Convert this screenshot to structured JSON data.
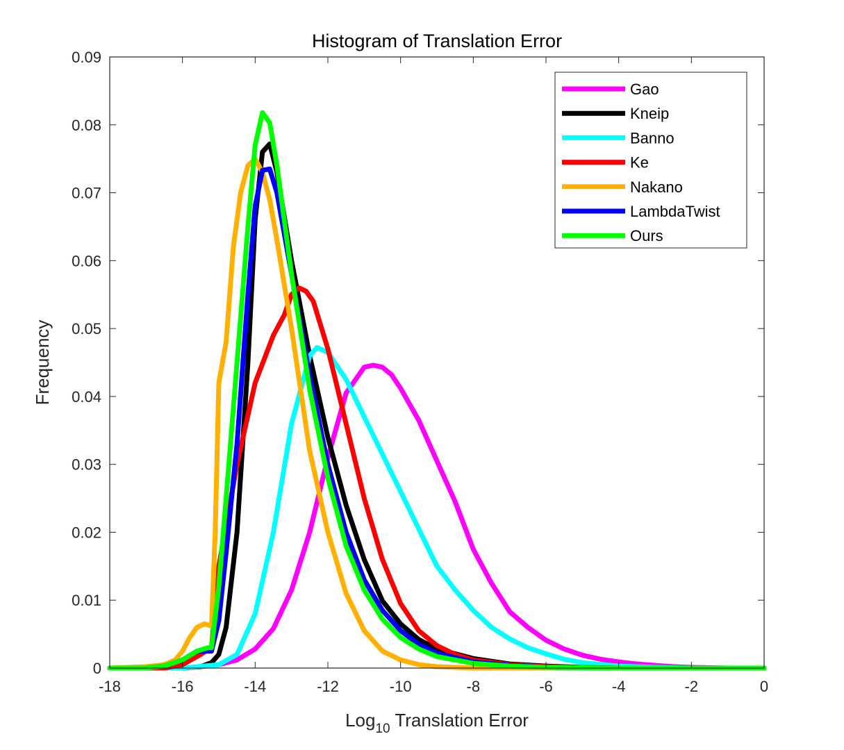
{
  "chart_data": {
    "type": "line",
    "title": "Histogram of Translation Error",
    "xlabel": {
      "prefix": "Log",
      "subscript": "10",
      "suffix": " Translation Error"
    },
    "ylabel": "Frequency",
    "xlim": [
      -18,
      0
    ],
    "ylim": [
      0,
      0.09
    ],
    "xticks": [
      -18,
      -16,
      -14,
      -12,
      -10,
      -8,
      -6,
      -4,
      -2,
      0
    ],
    "xtick_labels": [
      "-18",
      "-16",
      "-14",
      "-12",
      "-10",
      "-8",
      "-6",
      "-4",
      "-2",
      "0"
    ],
    "yticks": [
      0,
      0.01,
      0.02,
      0.03,
      0.04,
      0.05,
      0.06,
      0.07,
      0.08,
      0.09
    ],
    "ytick_labels": [
      "0",
      "0.01",
      "0.02",
      "0.03",
      "0.04",
      "0.05",
      "0.06",
      "0.07",
      "0.08",
      "0.09"
    ],
    "grid": false,
    "legend_position": "top-right",
    "series": [
      {
        "name": "Gao",
        "color": "#ff00ff",
        "x": [
          -18,
          -16,
          -15.5,
          -15,
          -14.5,
          -14,
          -13.5,
          -13,
          -12.5,
          -12,
          -11.5,
          -11,
          -10.75,
          -10.5,
          -10.25,
          -10,
          -9.5,
          -9,
          -8.5,
          -8,
          -7.5,
          -7,
          -6.5,
          -6,
          -5.5,
          -5,
          -4.5,
          -4,
          -3.5,
          -3,
          -2.5,
          -2,
          -1,
          0
        ],
        "y": [
          0,
          0,
          0.0002,
          0.0005,
          0.0012,
          0.0028,
          0.0058,
          0.0115,
          0.02,
          0.031,
          0.0405,
          0.0443,
          0.0446,
          0.0443,
          0.0432,
          0.0412,
          0.0365,
          0.0305,
          0.0245,
          0.0175,
          0.0125,
          0.0083,
          0.006,
          0.0041,
          0.0028,
          0.0019,
          0.0013,
          0.0009,
          0.0006,
          0.0004,
          0.0002,
          0.0001,
          0,
          0
        ]
      },
      {
        "name": "Kneip",
        "color": "#000000",
        "x": [
          -18,
          -17,
          -16,
          -15.5,
          -15.2,
          -15,
          -14.8,
          -14.5,
          -14.2,
          -14,
          -13.8,
          -13.6,
          -13.4,
          -13,
          -12.5,
          -12,
          -11.5,
          -11,
          -10.5,
          -10,
          -9.5,
          -9,
          -8,
          -7,
          -6,
          -5,
          -4,
          -2,
          0
        ],
        "y": [
          0,
          0,
          0,
          0.0002,
          0.0008,
          0.002,
          0.006,
          0.02,
          0.045,
          0.066,
          0.076,
          0.0772,
          0.073,
          0.06,
          0.046,
          0.034,
          0.024,
          0.016,
          0.0099,
          0.0065,
          0.0042,
          0.0028,
          0.0014,
          0.0006,
          0.0003,
          0.0001,
          0,
          0,
          0
        ]
      },
      {
        "name": "Banno",
        "color": "#00ffff",
        "x": [
          -18,
          -16,
          -15,
          -14.5,
          -14,
          -13.5,
          -13,
          -12.5,
          -12.3,
          -12,
          -11.5,
          -11,
          -10.5,
          -10,
          -9.5,
          -9,
          -8.5,
          -8,
          -7.5,
          -7,
          -6.5,
          -6,
          -5.5,
          -5,
          -4,
          -3,
          -2,
          0
        ],
        "y": [
          0,
          0,
          0.0005,
          0.002,
          0.008,
          0.02,
          0.036,
          0.046,
          0.0472,
          0.0465,
          0.0425,
          0.037,
          0.0315,
          0.026,
          0.0205,
          0.015,
          0.0115,
          0.0085,
          0.006,
          0.0043,
          0.003,
          0.0021,
          0.0013,
          0.0008,
          0.0003,
          0.0001,
          0,
          0
        ]
      },
      {
        "name": "Ke",
        "color": "#ff0000",
        "x": [
          -18,
          -16.5,
          -16,
          -15.5,
          -15.2,
          -15,
          -14.5,
          -14,
          -13.5,
          -13.2,
          -13,
          -12.8,
          -12.6,
          -12.4,
          -12,
          -11.5,
          -11,
          -10.5,
          -10,
          -9.5,
          -9,
          -8.5,
          -8,
          -7,
          -6,
          -5,
          -4,
          -2,
          0
        ],
        "y": [
          0,
          0,
          0.0005,
          0.002,
          0.003,
          0.015,
          0.03,
          0.042,
          0.049,
          0.052,
          0.055,
          0.056,
          0.0555,
          0.054,
          0.047,
          0.036,
          0.025,
          0.016,
          0.0095,
          0.0055,
          0.0033,
          0.002,
          0.0012,
          0.0005,
          0.0002,
          0.0001,
          0,
          0,
          0
        ]
      },
      {
        "name": "Nakano",
        "color": "#ffb000",
        "x": [
          -18,
          -17,
          -16.5,
          -16.2,
          -16,
          -15.8,
          -15.6,
          -15.4,
          -15.2,
          -15.1,
          -15,
          -14.8,
          -14.6,
          -14.4,
          -14.2,
          -14,
          -13.8,
          -13.6,
          -13.4,
          -13,
          -12.5,
          -12,
          -11.5,
          -11,
          -10.5,
          -10,
          -9.5,
          -9,
          -8,
          -6,
          -4,
          0
        ],
        "y": [
          0,
          0.0002,
          0.0005,
          0.0012,
          0.0025,
          0.0045,
          0.006,
          0.0065,
          0.0062,
          0.02,
          0.042,
          0.048,
          0.062,
          0.07,
          0.074,
          0.075,
          0.073,
          0.069,
          0.063,
          0.05,
          0.032,
          0.02,
          0.011,
          0.0055,
          0.0025,
          0.0012,
          0.0005,
          0.0002,
          0,
          0,
          0,
          0
        ]
      },
      {
        "name": "LambdaTwist",
        "color": "#0000ff",
        "x": [
          -18,
          -17,
          -16.5,
          -16,
          -15.6,
          -15.2,
          -15,
          -14.8,
          -14.5,
          -14.2,
          -14,
          -13.8,
          -13.6,
          -13.4,
          -13,
          -12.5,
          -12,
          -11.5,
          -11,
          -10.5,
          -10,
          -9.5,
          -9,
          -8,
          -7,
          -6,
          -4,
          -2,
          0
        ],
        "y": [
          0,
          0,
          0.0003,
          0.0012,
          0.0025,
          0.0025,
          0.007,
          0.017,
          0.033,
          0.055,
          0.068,
          0.0733,
          0.0735,
          0.07,
          0.058,
          0.043,
          0.03,
          0.02,
          0.013,
          0.0085,
          0.0055,
          0.0035,
          0.0022,
          0.0009,
          0.0004,
          0.0001,
          0,
          0,
          0
        ]
      },
      {
        "name": "Ours",
        "color": "#00ff00",
        "x": [
          -18,
          -17,
          -16.5,
          -16,
          -15.6,
          -15.3,
          -15.2,
          -15,
          -14.8,
          -14.5,
          -14.2,
          -14,
          -13.8,
          -13.6,
          -13.4,
          -13,
          -12.5,
          -12,
          -11.5,
          -11,
          -10.5,
          -10,
          -9.5,
          -9,
          -8,
          -7,
          -6,
          -4,
          -2,
          0
        ],
        "y": [
          0,
          0,
          0.0003,
          0.0012,
          0.0025,
          0.003,
          0.003,
          0.012,
          0.025,
          0.045,
          0.065,
          0.077,
          0.0818,
          0.0803,
          0.074,
          0.058,
          0.041,
          0.028,
          0.018,
          0.0115,
          0.0072,
          0.0045,
          0.0028,
          0.0017,
          0.0007,
          0.0003,
          0.0001,
          0,
          0,
          0
        ]
      }
    ]
  }
}
